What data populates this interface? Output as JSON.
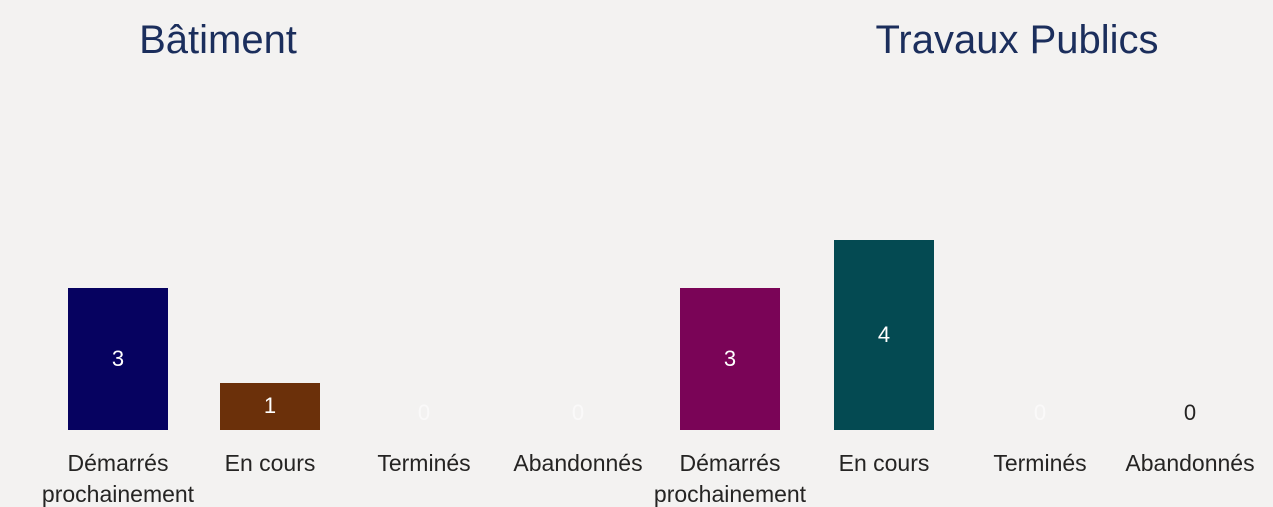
{
  "chart_data": [
    {
      "type": "bar",
      "title": "Bâtiment",
      "categories": [
        "Démarrés prochainement",
        "En cours",
        "Terminés",
        "Abandonnés"
      ],
      "values": [
        3,
        1,
        0,
        0
      ],
      "colors": [
        "#060260",
        "#6b300a",
        "#e8e8f0",
        "#e8e8f0"
      ],
      "label_colors": [
        "#ffffff",
        "#ffffff",
        "#ffffff",
        "#ffffff"
      ]
    },
    {
      "type": "bar",
      "title": "Travaux Publics",
      "categories": [
        "Démarrés prochainement",
        "En cours",
        "Terminés",
        "Abandonnés"
      ],
      "values": [
        3,
        4,
        0,
        0
      ],
      "colors": [
        "#7a0457",
        "#044a52",
        "#e8e8f0",
        "#e8e8f0"
      ],
      "label_colors": [
        "#ffffff",
        "#ffffff",
        "#ffffff",
        "#252423"
      ]
    }
  ]
}
